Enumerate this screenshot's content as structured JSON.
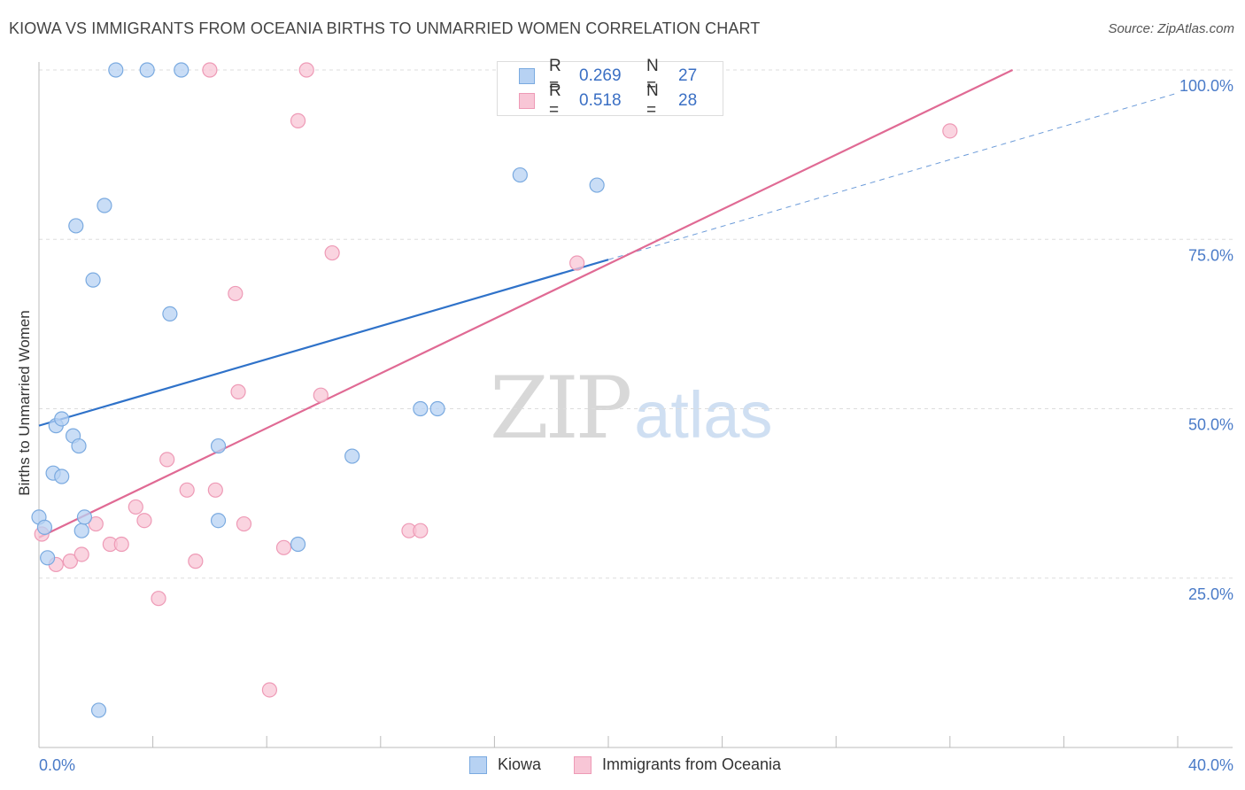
{
  "header": {
    "title": "KIOWA VS IMMIGRANTS FROM OCEANIA BIRTHS TO UNMARRIED WOMEN CORRELATION CHART",
    "source": "Source: ZipAtlas.com"
  },
  "watermark": {
    "zip": "ZIP",
    "atlas": "atlas"
  },
  "legend": {
    "series": [
      {
        "r_label": "R =",
        "r_value": "0.269",
        "n_label": "N =",
        "n_value": "27"
      },
      {
        "r_label": "R =",
        "r_value": "0.518",
        "n_label": "N =",
        "n_value": "28"
      }
    ]
  },
  "bottom_legend": {
    "kiowa": "Kiowa",
    "oceania": "Immigrants from Oceania"
  },
  "colors": {
    "kiowa_fill": "#b7d2f3",
    "kiowa_stroke": "#7aaae0",
    "kiowa_line": "#2f72c9",
    "oceania_fill": "#f8c6d6",
    "oceania_stroke": "#ee9ab6",
    "oceania_line": "#e06a94",
    "grid": "#dddddd",
    "tick_text": "#4a7bc8"
  },
  "chart_data": {
    "type": "scatter",
    "title": "KIOWA VS IMMIGRANTS FROM OCEANIA BIRTHS TO UNMARRIED WOMEN CORRELATION CHART",
    "xlabel": "",
    "ylabel": "Births to Unmarried Women",
    "xlim": [
      0,
      40
    ],
    "ylim": [
      0,
      100
    ],
    "x_tick_labels": [
      "0.0%",
      "40.0%"
    ],
    "y_ticks": [
      25,
      50,
      75,
      100
    ],
    "y_tick_labels": [
      "25.0%",
      "50.0%",
      "75.0%",
      "100.0%"
    ],
    "grid": true,
    "series": [
      {
        "name": "Kiowa",
        "points": [
          [
            0.0,
            34
          ],
          [
            0.2,
            32.5
          ],
          [
            0.3,
            28
          ],
          [
            0.5,
            40.5
          ],
          [
            0.6,
            47.5
          ],
          [
            0.8,
            40
          ],
          [
            0.8,
            48.5
          ],
          [
            1.2,
            46
          ],
          [
            1.4,
            44.5
          ],
          [
            1.5,
            32
          ],
          [
            1.6,
            34
          ],
          [
            1.3,
            77
          ],
          [
            1.9,
            69
          ],
          [
            2.3,
            80
          ],
          [
            2.1,
            5.5
          ],
          [
            4.6,
            64
          ],
          [
            6.3,
            44.5
          ],
          [
            6.3,
            33.5
          ],
          [
            9.1,
            30
          ],
          [
            11.0,
            43
          ],
          [
            13.4,
            50
          ],
          [
            14.0,
            50
          ],
          [
            16.9,
            84.5
          ],
          [
            19.6,
            83
          ],
          [
            2.7,
            100
          ],
          [
            3.8,
            100
          ],
          [
            5.0,
            100
          ]
        ],
        "trend": {
          "x_from": 0,
          "y_from": 47.5,
          "x_to": 20,
          "y_to": 72,
          "extend_to_x": 40,
          "extend_to_y": 96.6,
          "style": "solid-then-dashed"
        }
      },
      {
        "name": "Immigrants from Oceania",
        "points": [
          [
            0.1,
            31.5
          ],
          [
            0.6,
            27
          ],
          [
            1.1,
            27.5
          ],
          [
            1.5,
            28.5
          ],
          [
            2.0,
            33
          ],
          [
            2.5,
            30
          ],
          [
            2.9,
            30
          ],
          [
            3.4,
            35.5
          ],
          [
            3.7,
            33.5
          ],
          [
            4.2,
            22
          ],
          [
            4.5,
            42.5
          ],
          [
            5.2,
            38
          ],
          [
            5.5,
            27.5
          ],
          [
            6.2,
            38
          ],
          [
            6.9,
            67
          ],
          [
            7.0,
            52.5
          ],
          [
            7.2,
            33
          ],
          [
            8.1,
            8.5
          ],
          [
            8.6,
            29.5
          ],
          [
            9.1,
            92.5
          ],
          [
            9.9,
            52
          ],
          [
            10.3,
            73
          ],
          [
            13.0,
            32
          ],
          [
            13.4,
            32
          ],
          [
            18.9,
            71.5
          ],
          [
            32.0,
            91
          ],
          [
            6.0,
            100
          ],
          [
            9.4,
            100
          ]
        ],
        "trend": {
          "x_from": 0,
          "y_from": 31,
          "x_to": 34.2,
          "y_to": 100,
          "style": "solid"
        }
      }
    ]
  }
}
